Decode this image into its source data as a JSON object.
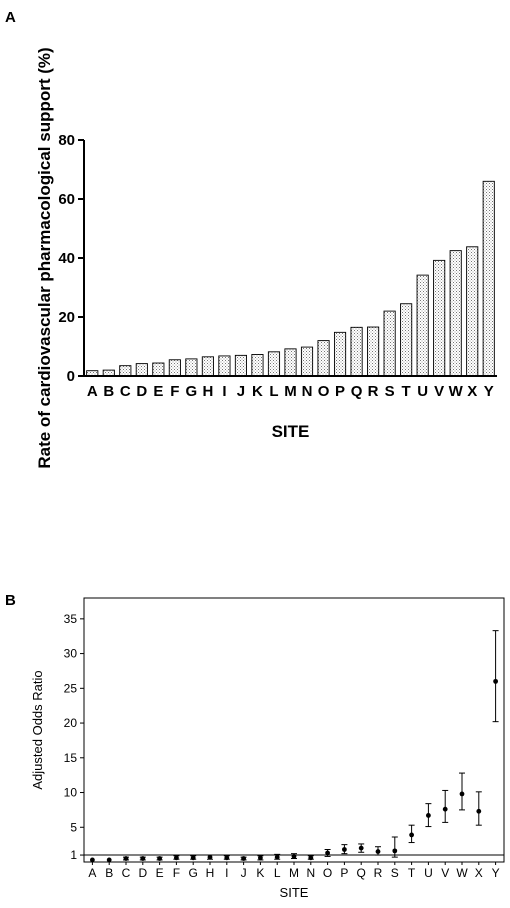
{
  "panels": {
    "a_label": "A",
    "b_label": "B"
  },
  "chart_data": [
    {
      "type": "bar",
      "panel": "A",
      "categories": [
        "A",
        "B",
        "C",
        "D",
        "E",
        "F",
        "G",
        "H",
        "I",
        "J",
        "K",
        "L",
        "M",
        "N",
        "O",
        "P",
        "Q",
        "R",
        "S",
        "T",
        "U",
        "V",
        "W",
        "X",
        "Y"
      ],
      "values": [
        1.8,
        2.0,
        3.5,
        4.2,
        4.4,
        5.5,
        5.8,
        6.5,
        6.8,
        7.0,
        7.3,
        8.2,
        9.2,
        9.8,
        12.0,
        14.8,
        16.5,
        16.6,
        22.0,
        24.5,
        34.2,
        39.2,
        42.5,
        43.8,
        66.0
      ],
      "xlabel": "SITE",
      "ylabel": "Rate of cardiovascular pharmacological support  (%)",
      "ylim": [
        0,
        80
      ],
      "yticks": [
        0,
        20,
        40,
        60,
        80
      ],
      "fill": "#d9d9d9",
      "stroke": "#000000"
    },
    {
      "type": "scatter",
      "panel": "B",
      "categories": [
        "A",
        "B",
        "C",
        "D",
        "E",
        "F",
        "G",
        "H",
        "I",
        "J",
        "K",
        "L",
        "M",
        "N",
        "O",
        "P",
        "Q",
        "R",
        "S",
        "T",
        "U",
        "V",
        "W",
        "X",
        "Y"
      ],
      "values": [
        0.3,
        0.3,
        0.5,
        0.5,
        0.5,
        0.6,
        0.6,
        0.7,
        0.6,
        0.5,
        0.6,
        0.7,
        0.8,
        0.6,
        1.3,
        1.8,
        2.0,
        1.5,
        1.6,
        3.9,
        6.7,
        7.6,
        9.8,
        7.3,
        26.0
      ],
      "ci_low": [
        0.2,
        0.2,
        0.3,
        0.3,
        0.3,
        0.4,
        0.4,
        0.4,
        0.4,
        0.3,
        0.3,
        0.4,
        0.5,
        0.4,
        0.8,
        1.2,
        1.4,
        1.0,
        0.7,
        2.8,
        5.1,
        5.7,
        7.5,
        5.3,
        20.2
      ],
      "ci_high": [
        0.4,
        0.4,
        0.7,
        0.7,
        0.7,
        0.9,
        0.9,
        1.0,
        0.9,
        0.7,
        0.9,
        1.1,
        1.2,
        0.9,
        1.8,
        2.5,
        2.6,
        2.2,
        3.6,
        5.3,
        8.4,
        10.3,
        12.8,
        10.1,
        33.3
      ],
      "xlabel": "SITE",
      "ylabel": "Adjusted Odds Ratio",
      "ylim": [
        0,
        38
      ],
      "yticks": [
        1,
        5,
        10,
        15,
        20,
        25,
        30,
        35
      ],
      "reference_line": 1,
      "marker_color": "#000000"
    }
  ]
}
